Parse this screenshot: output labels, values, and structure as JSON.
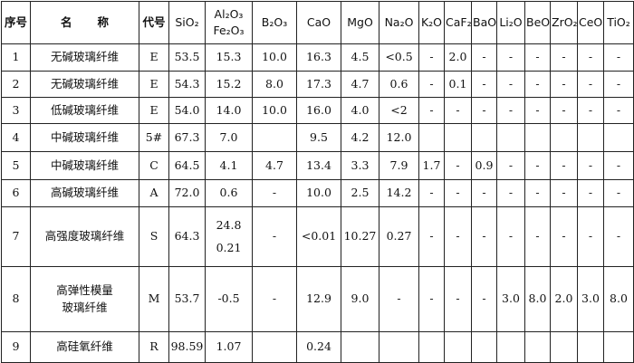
{
  "table": {
    "headers": {
      "index": "序号",
      "name_part1": "名",
      "name_part2": "称",
      "code": "代号",
      "sio2": "SiO₂",
      "al2o3": "Al₂O₃",
      "fe2o3": "Fe₂O₃",
      "b2o3": "B₂O₃",
      "cao": "CaO",
      "mgo": "MgO",
      "na2o": "Na₂O",
      "k2o": "K₂O",
      "caf2": "CaF₂",
      "bao": "BaO",
      "li2o": "Li₂O",
      "beo": "BeO",
      "zro2": "ZrO₂",
      "ceo": "CeO",
      "tio2": "TiO₂"
    },
    "rows": [
      {
        "index": "1",
        "name": "无碱玻璃纤维",
        "code": "E",
        "sio2": "53.5",
        "al2o3": "15.3",
        "b2o3": "10.0",
        "cao": "16.3",
        "mgo": "4.5",
        "na2o": "<0.5",
        "k2o": "-",
        "caf2": "2.0",
        "bao": "-",
        "li2o": "-",
        "beo": "-",
        "zro2": "-",
        "ceo": "-",
        "tio2": "-"
      },
      {
        "index": "2",
        "name": "无碱玻璃纤维",
        "code": "E",
        "sio2": "54.3",
        "al2o3": "15.2",
        "b2o3": "8.0",
        "cao": "17.3",
        "mgo": "4.7",
        "na2o": "0.6",
        "k2o": "-",
        "caf2": "0.1",
        "bao": "-",
        "li2o": "-",
        "beo": "-",
        "zro2": "-",
        "ceo": "-",
        "tio2": "-"
      },
      {
        "index": "3",
        "name": "低碱玻璃纤维",
        "code": "E",
        "sio2": "54.0",
        "al2o3": "14.0",
        "b2o3": "10.0",
        "cao": "16.0",
        "mgo": "4.0",
        "na2o": "<2",
        "k2o": "-",
        "caf2": "-",
        "bao": "-",
        "li2o": "-",
        "beo": "-",
        "zro2": "-",
        "ceo": "-",
        "tio2": "-"
      },
      {
        "index": "4",
        "name": "中碱玻璃纤维",
        "code": "5#",
        "sio2": "67.3",
        "al2o3": "7.0",
        "b2o3": "",
        "cao": "9.5",
        "mgo": "4.2",
        "na2o": "12.0",
        "k2o": "",
        "caf2": "",
        "bao": "",
        "li2o": "",
        "beo": "",
        "zro2": "",
        "ceo": "",
        "tio2": ""
      },
      {
        "index": "5",
        "name": "中碱玻璃纤维",
        "code": "C",
        "sio2": "64.5",
        "al2o3": "4.1",
        "b2o3": "4.7",
        "cao": "13.4",
        "mgo": "3.3",
        "na2o": "7.9",
        "k2o": "1.7",
        "caf2": "-",
        "bao": "0.9",
        "li2o": "-",
        "beo": "-",
        "zro2": "-",
        "ceo": "-",
        "tio2": "-"
      },
      {
        "index": "6",
        "name": "高碱玻璃纤维",
        "code": "A",
        "sio2": "72.0",
        "al2o3": "0.6",
        "b2o3": "-",
        "cao": "10.0",
        "mgo": "2.5",
        "na2o": "14.2",
        "k2o": "-",
        "caf2": "-",
        "bao": "-",
        "li2o": "-",
        "beo": "-",
        "zro2": "-",
        "ceo": "-",
        "tio2": "-"
      },
      {
        "index": "7",
        "name": "高强度玻璃纤维",
        "code": "S",
        "sio2": "64.3",
        "al2o3": "24.8",
        "fe2o3": "0.21",
        "b2o3": "-",
        "cao": "<0.01",
        "mgo": "10.27",
        "na2o": "0.27",
        "k2o": "-",
        "caf2": "-",
        "bao": "-",
        "li2o": "-",
        "beo": "-",
        "zro2": "-",
        "ceo": "-",
        "tio2": "-"
      },
      {
        "index": "8",
        "name_line1": "高弹性模量",
        "name_line2": "玻璃纤维",
        "code": "M",
        "sio2": "53.7",
        "al2o3": "-0.5",
        "b2o3": "-",
        "cao": "12.9",
        "mgo": "9.0",
        "na2o": "-",
        "k2o": "-",
        "caf2": "-",
        "bao": "-",
        "li2o": "3.0",
        "beo": "8.0",
        "zro2": "2.0",
        "ceo": "3.0",
        "tio2": "8.0"
      },
      {
        "index": "9",
        "name": "高硅氧纤维",
        "code": "R",
        "sio2": "98.59",
        "al2o3": "1.07",
        "b2o3": "",
        "cao": "0.24",
        "mgo": "",
        "na2o": "",
        "k2o": "",
        "caf2": "",
        "bao": "",
        "li2o": "",
        "beo": "",
        "zro2": "",
        "ceo": "",
        "tio2": ""
      }
    ]
  }
}
